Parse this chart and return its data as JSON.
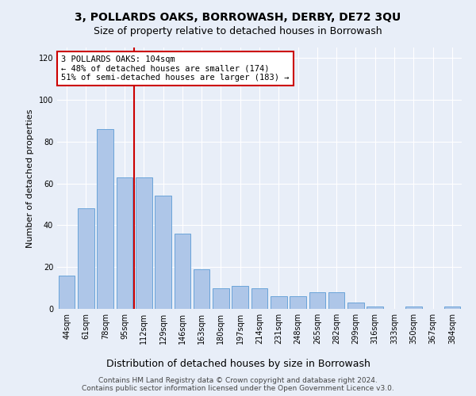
{
  "title": "3, POLLARDS OAKS, BORROWASH, DERBY, DE72 3QU",
  "subtitle": "Size of property relative to detached houses in Borrowash",
  "xlabel": "Distribution of detached houses by size in Borrowash",
  "ylabel": "Number of detached properties",
  "categories": [
    "44sqm",
    "61sqm",
    "78sqm",
    "95sqm",
    "112sqm",
    "129sqm",
    "146sqm",
    "163sqm",
    "180sqm",
    "197sqm",
    "214sqm",
    "231sqm",
    "248sqm",
    "265sqm",
    "282sqm",
    "299sqm",
    "316sqm",
    "333sqm",
    "350sqm",
    "367sqm",
    "384sqm"
  ],
  "values": [
    16,
    48,
    86,
    63,
    63,
    54,
    36,
    19,
    10,
    11,
    10,
    6,
    6,
    8,
    8,
    3,
    1,
    0,
    1,
    0,
    1
  ],
  "bar_color": "#aec6e8",
  "bar_edge_color": "#5b9bd5",
  "vline_color": "#cc0000",
  "annotation_line1": "3 POLLARDS OAKS: 104sqm",
  "annotation_line2": "← 48% of detached houses are smaller (174)",
  "annotation_line3": "51% of semi-detached houses are larger (183) →",
  "annotation_box_color": "#ffffff",
  "annotation_box_edge": "#cc0000",
  "ylim": [
    0,
    125
  ],
  "yticks": [
    0,
    20,
    40,
    60,
    80,
    100,
    120
  ],
  "background_color": "#e8eef8",
  "footer_line1": "Contains HM Land Registry data © Crown copyright and database right 2024.",
  "footer_line2": "Contains public sector information licensed under the Open Government Licence v3.0.",
  "title_fontsize": 10,
  "subtitle_fontsize": 9,
  "xlabel_fontsize": 9,
  "ylabel_fontsize": 8,
  "tick_fontsize": 7,
  "annotation_fontsize": 7.5,
  "footer_fontsize": 6.5
}
